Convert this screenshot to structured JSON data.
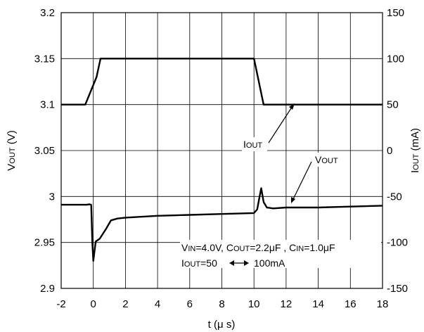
{
  "chart_data": {
    "type": "line",
    "xlabel": {
      "main": "t",
      "paren_open": "(",
      "unit": "μ s",
      "paren_close": ")"
    },
    "x_ticks": [
      "-2",
      "0",
      "2",
      "4",
      "6",
      "8",
      "10",
      "12",
      "14",
      "16",
      "18"
    ],
    "y_left_ticks": [
      "3.2",
      "3.15",
      "3.1",
      "3.05",
      "3",
      "2.95",
      "2.9"
    ],
    "y_right_ticks": [
      "150",
      "100",
      "50",
      "0",
      "-50",
      "-100",
      "-150"
    ],
    "y_left_label": {
      "main": "V",
      "sub": "OUT",
      "unit": " (V)"
    },
    "y_right_label": {
      "main": "I",
      "sub": "OUT",
      "unit": " (mA)"
    },
    "xlim": [
      -2,
      18
    ],
    "ylim_left": [
      2.9,
      3.2
    ],
    "ylim_right": [
      -150,
      150
    ],
    "grid": true,
    "series": [
      {
        "name": "IOUT",
        "axis": "right",
        "x": [
          -2,
          -0.5,
          0.2,
          0.45,
          10.0,
          10.6,
          18
        ],
        "y": [
          50,
          50,
          80,
          100,
          100,
          50,
          50
        ]
      },
      {
        "name": "VOUT",
        "axis": "left",
        "x": [
          -2,
          -0.4,
          -0.25,
          -0.13,
          -0.06,
          0.0,
          0.15,
          0.4,
          0.8,
          1.1,
          1.5,
          2,
          4,
          6,
          8,
          10.0,
          10.2,
          10.35,
          10.45,
          10.6,
          10.8,
          11.2,
          12,
          14,
          16,
          18
        ],
        "y": [
          2.991,
          2.991,
          2.9915,
          2.991,
          2.95,
          2.93,
          2.951,
          2.954,
          2.965,
          2.974,
          2.976,
          2.977,
          2.979,
          2.98,
          2.981,
          2.982,
          2.986,
          3.0,
          3.009,
          2.994,
          2.988,
          2.987,
          2.988,
          2.988,
          2.989,
          2.99
        ]
      }
    ],
    "annotations": {
      "iout": {
        "main": "I",
        "sub": "OUT"
      },
      "vout": {
        "main": "V",
        "sub": "OUT"
      },
      "cond1": [
        {
          "main": "V",
          "sub": "IN",
          "text": "=4.0V, "
        },
        {
          "main": "C",
          "sub": "OUT",
          "text": "=2.2μF , "
        },
        {
          "main": "C",
          "sub": "IN",
          "text": "=1.0μF"
        }
      ],
      "cond2": {
        "main": "I",
        "sub": "OUT",
        "text_a": "=50",
        "text_b": "100mA"
      }
    }
  }
}
